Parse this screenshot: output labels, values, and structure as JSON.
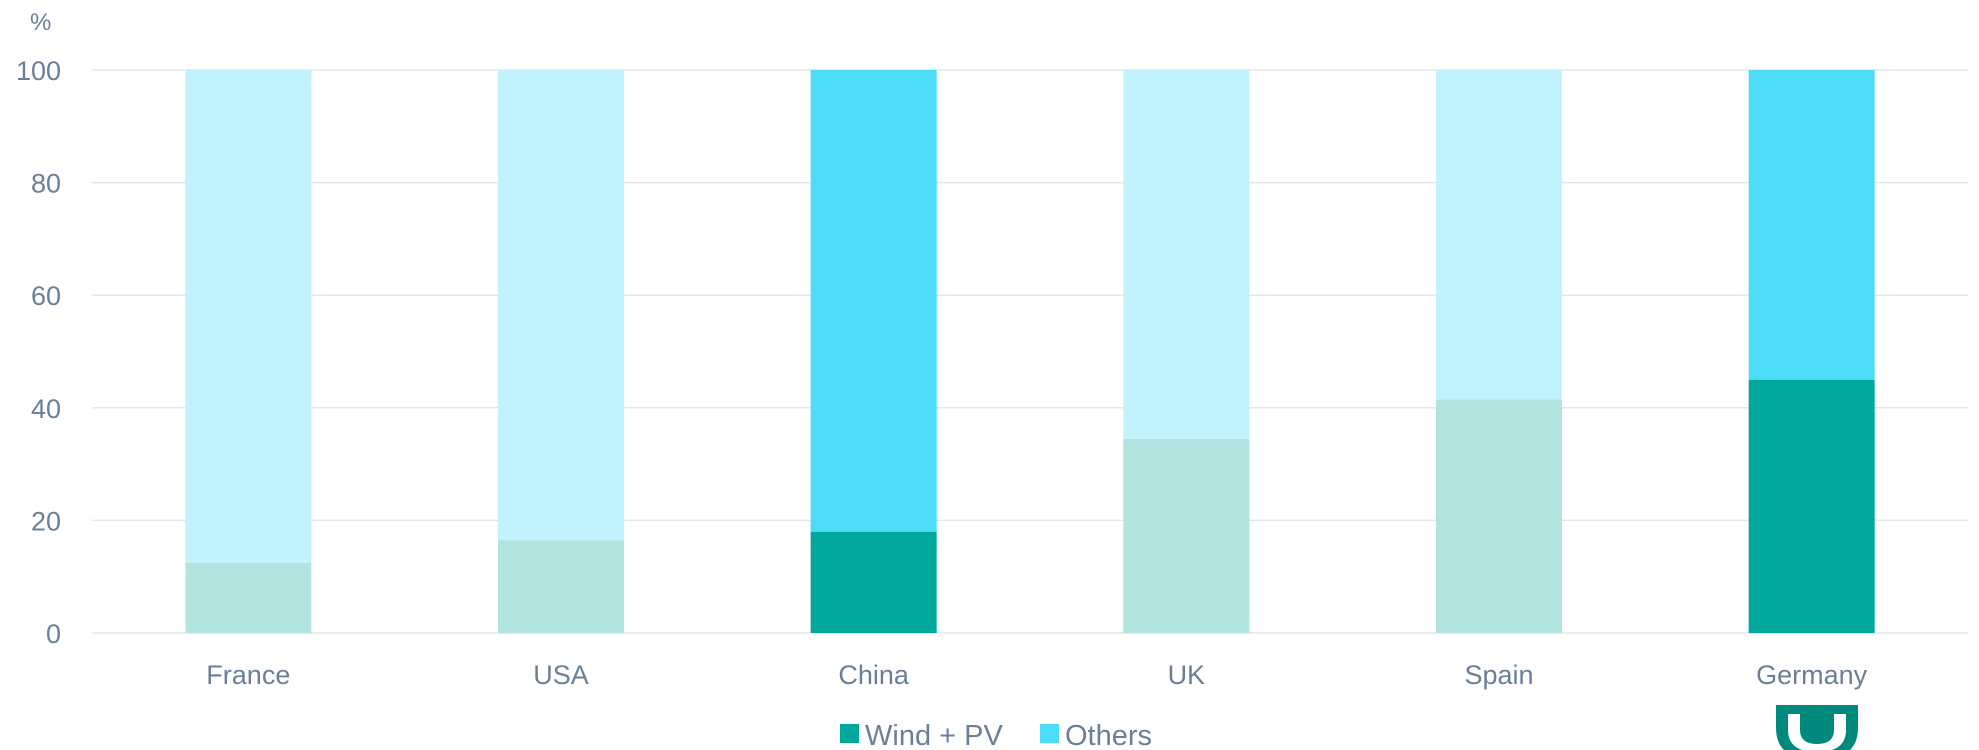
{
  "chart_data": {
    "type": "bar",
    "stacked": true,
    "ylabel": "%",
    "ylim": [
      0,
      100
    ],
    "yticks": [
      0,
      20,
      40,
      60,
      80,
      100
    ],
    "grid": true,
    "legend_position": "bottom-center",
    "categories": [
      "France",
      "USA",
      "China",
      "UK",
      "Spain",
      "Germany"
    ],
    "highlighted": [
      false,
      false,
      true,
      false,
      false,
      true
    ],
    "series": [
      {
        "name": "Wind + PV",
        "values": [
          12.5,
          16.5,
          18,
          34.5,
          41.5,
          45
        ],
        "color": "#00a89c",
        "muted_color": "#b2e3df"
      },
      {
        "name": "Others",
        "values": [
          87.5,
          83.5,
          82,
          65.5,
          58.5,
          55
        ],
        "color": "#4ddcf5",
        "muted_color": "#c2f2fb"
      }
    ]
  },
  "logo": {
    "icon": "shield-logo-icon",
    "color": "#008a7e"
  }
}
